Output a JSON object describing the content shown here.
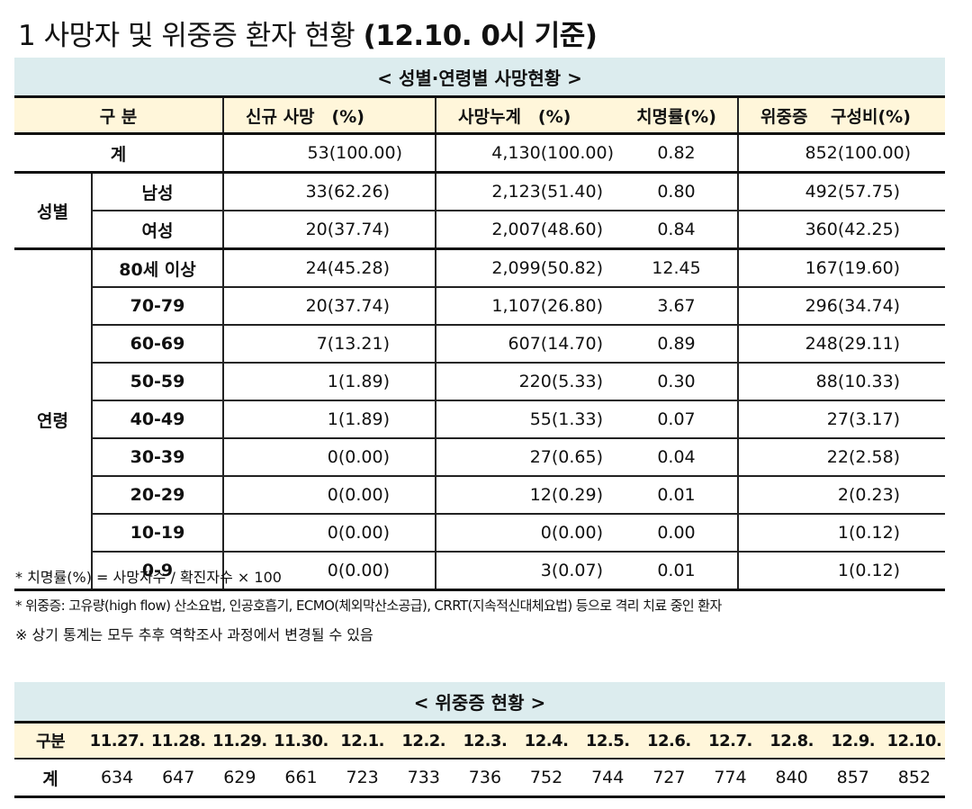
{
  "title": {
    "number": "1",
    "text": "사망자 및 위중증 환자 현황",
    "basis": "(12.10. 0시 기준)"
  },
  "death_table": {
    "caption": "< 성별·연령별 사망현황 >",
    "headers": {
      "category": "구 분",
      "new_deaths": "신규 사망　(%)",
      "cumulative": "사망누계　(%)",
      "fatality": "치명률(%)",
      "severe": "위중증　 구성비(%)"
    },
    "total": {
      "label": "계",
      "new": "53(100.00)",
      "cum": "4,130(100.00)",
      "rate": "0.82",
      "severe": "852(100.00)"
    },
    "sex_group_label": "성별",
    "sex_rows": [
      {
        "label": "남성",
        "new": "33(62.26)",
        "cum": "2,123(51.40)",
        "rate": "0.80",
        "severe": "492(57.75)"
      },
      {
        "label": "여성",
        "new": "20(37.74)",
        "cum": "2,007(48.60)",
        "rate": "0.84",
        "severe": "360(42.25)"
      }
    ],
    "age_group_label": "연령",
    "age_rows": [
      {
        "label": "80세 이상",
        "new": "24(45.28)",
        "cum": "2,099(50.82)",
        "rate": "12.45",
        "severe": "167(19.60)"
      },
      {
        "label": "70-79",
        "new": "20(37.74)",
        "cum": "1,107(26.80)",
        "rate": "3.67",
        "severe": "296(34.74)"
      },
      {
        "label": "60-69",
        "new": "7(13.21)",
        "cum": "607(14.70)",
        "rate": "0.89",
        "severe": "248(29.11)"
      },
      {
        "label": "50-59",
        "new": "1(1.89)",
        "cum": "220(5.33)",
        "rate": "0.30",
        "severe": "88(10.33)"
      },
      {
        "label": "40-49",
        "new": "1(1.89)",
        "cum": "55(1.33)",
        "rate": "0.07",
        "severe": "27(3.17)"
      },
      {
        "label": "30-39",
        "new": "0(0.00)",
        "cum": "27(0.65)",
        "rate": "0.04",
        "severe": "22(2.58)"
      },
      {
        "label": "20-29",
        "new": "0(0.00)",
        "cum": "12(0.29)",
        "rate": "0.01",
        "severe": "2(0.23)"
      },
      {
        "label": "10-19",
        "new": "0(0.00)",
        "cum": "0(0.00)",
        "rate": "0.00",
        "severe": "1(0.12)"
      },
      {
        "label": "0-9",
        "new": "0(0.00)",
        "cum": "3(0.07)",
        "rate": "0.01",
        "severe": "1(0.12)"
      }
    ]
  },
  "notes": [
    "* 치명률(%) = 사망자수 / 확진자수 × 100",
    "*  위중증: 고유량(high flow) 산소요법, 인공호흡기, ECMO(체외막산소공급), CRRT(지속적신대체요법) 등으로 격리 치료 중인 환자",
    "※ 상기 통계는 모두 추후 역학조사 과정에서 변경될 수 있음"
  ],
  "severe_table": {
    "caption": "< 위중증 현황 >",
    "row_header": "구분",
    "total_label": "계",
    "dates": [
      "11.27.",
      "11.28.",
      "11.29.",
      "11.30.",
      "12.1.",
      "12.2.",
      "12.3.",
      "12.4.",
      "12.5.",
      "12.6.",
      "12.7.",
      "12.8.",
      "12.9.",
      "12.10."
    ],
    "values": [
      "634",
      "647",
      "629",
      "661",
      "723",
      "733",
      "736",
      "752",
      "744",
      "727",
      "774",
      "840",
      "857",
      "852"
    ]
  }
}
